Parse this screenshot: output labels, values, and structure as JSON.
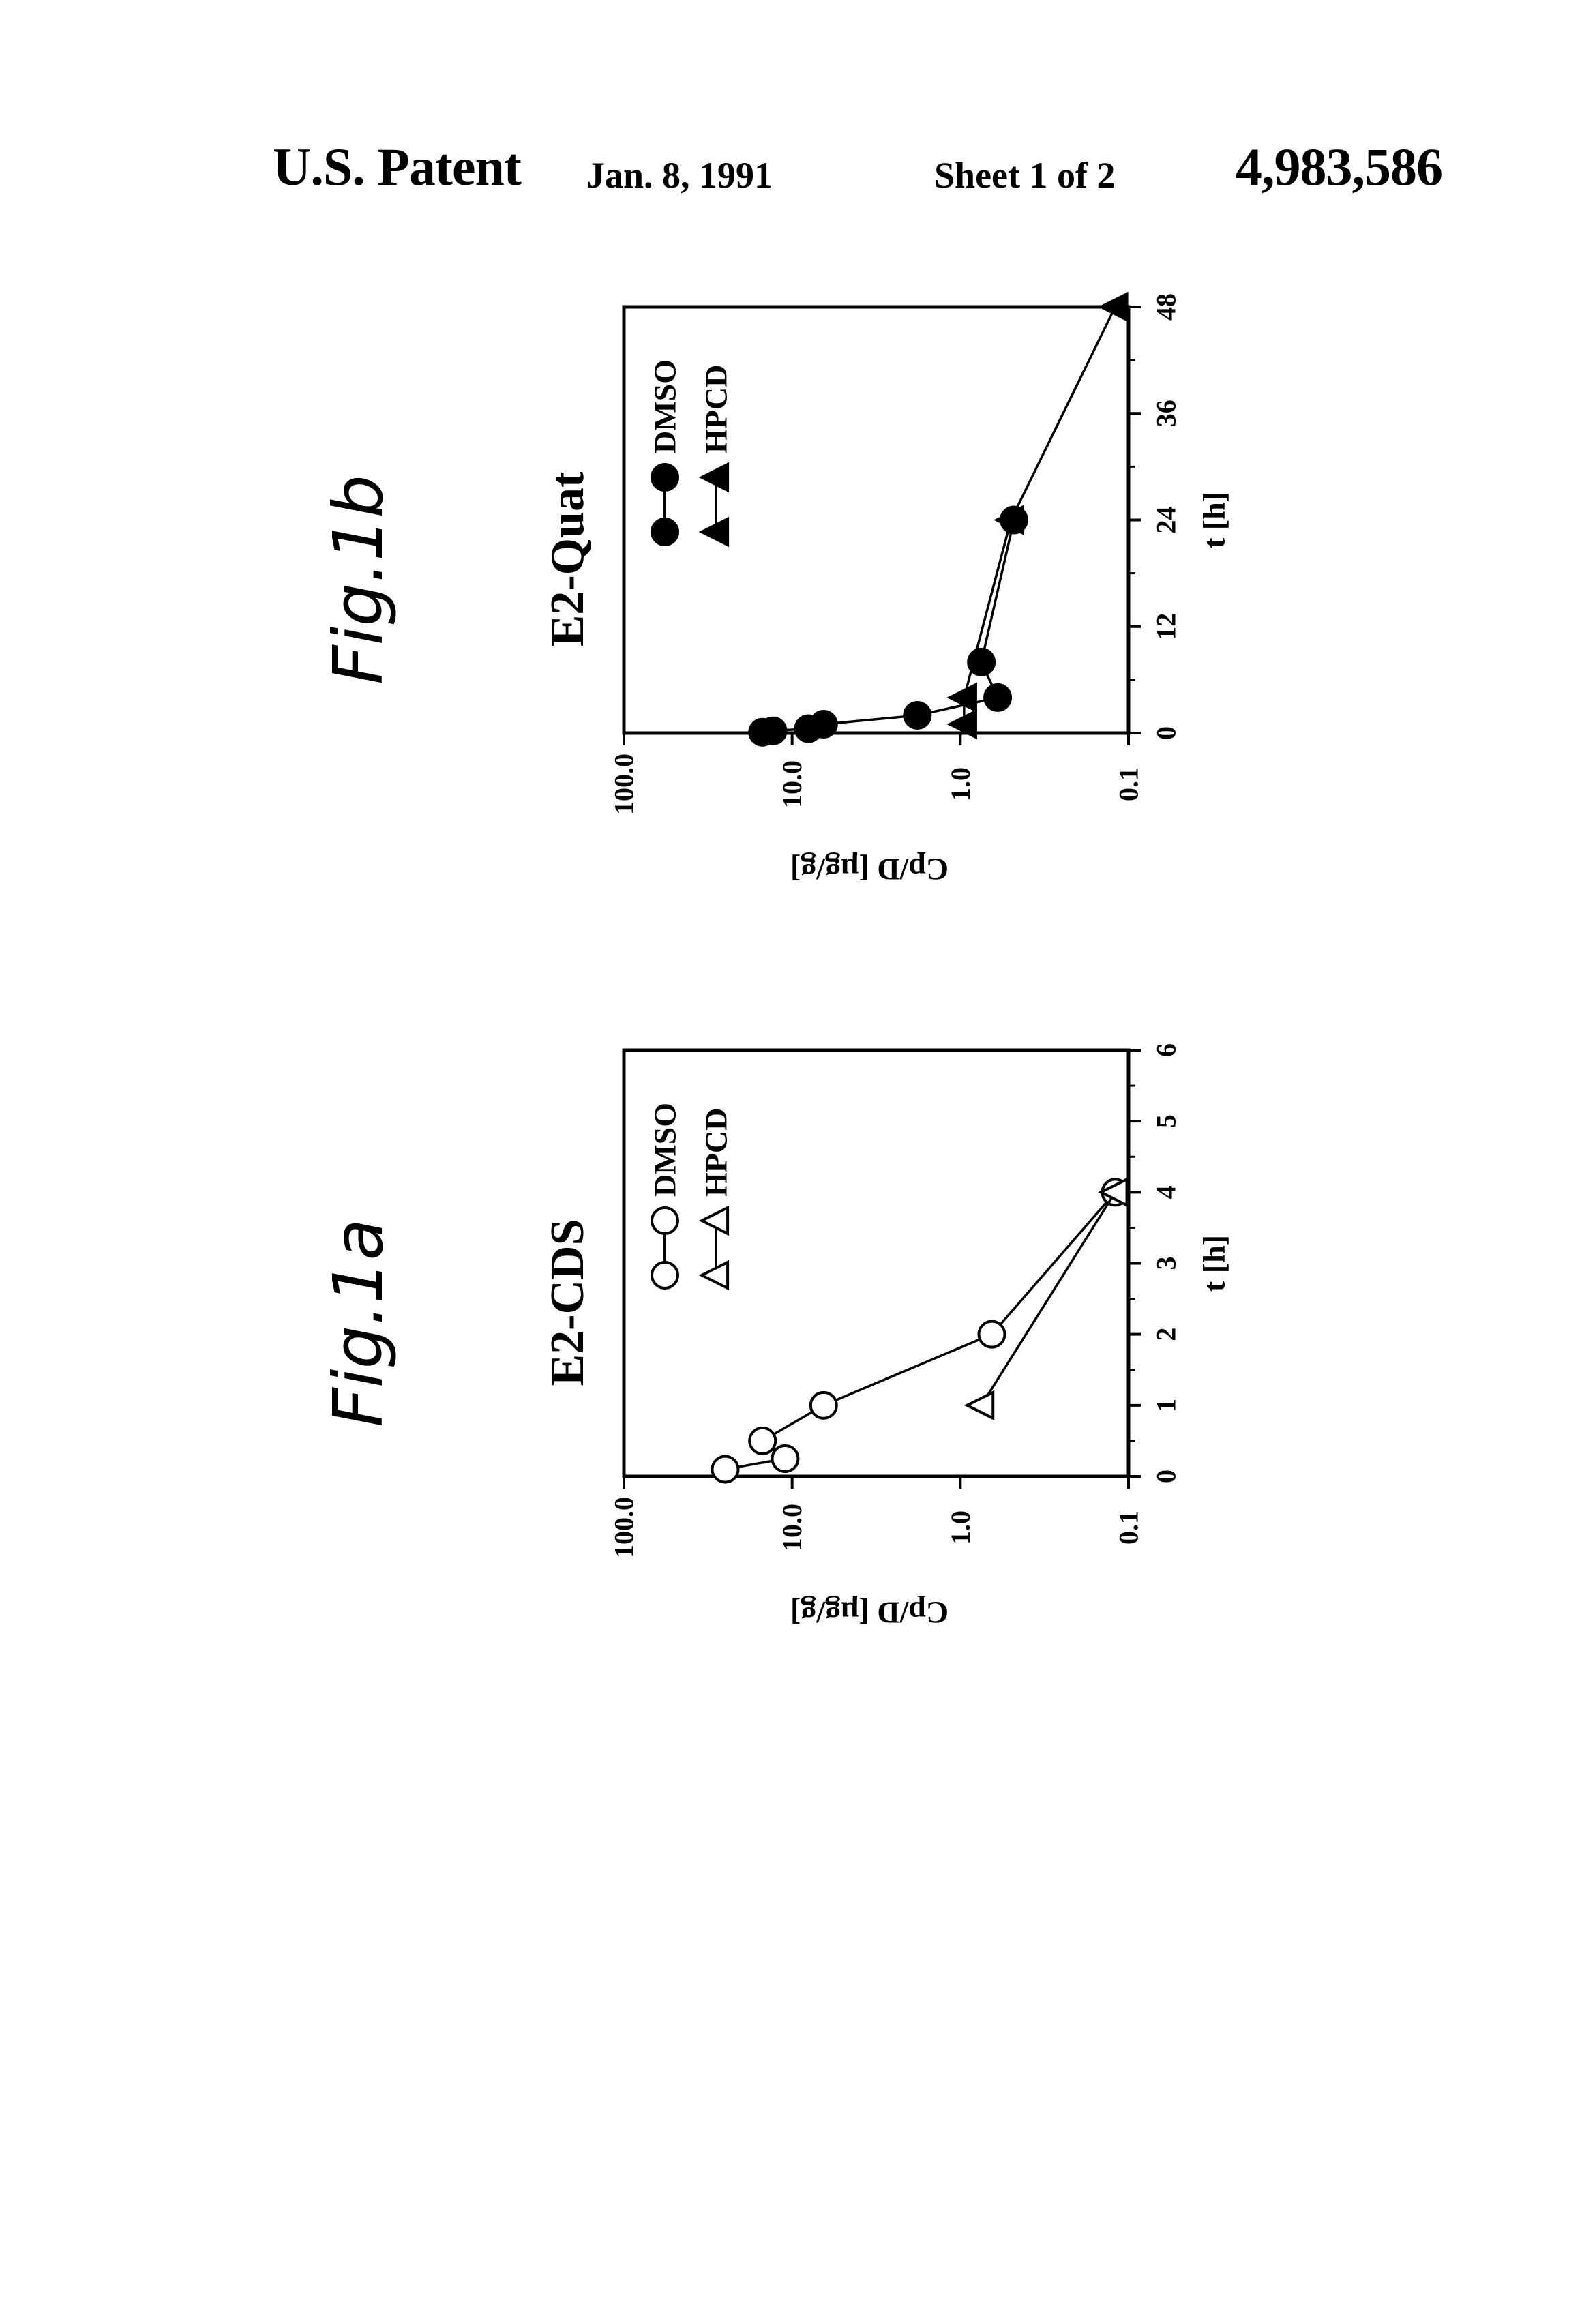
{
  "header": {
    "title": "U.S. Patent",
    "date": "Jan. 8, 1991",
    "sheet": "Sheet 1 of 2",
    "patent_number": "4,983,586"
  },
  "colors": {
    "ink": "#000000",
    "paper": "#ffffff"
  },
  "chart_data": [
    {
      "id": "fig1a",
      "figure_label": "Fig.1a",
      "type": "scatter",
      "title": "E2-CDS",
      "xlabel": "t [h]",
      "ylabel": "Cp/D [µg/g]",
      "xlim": [
        0,
        6
      ],
      "ylim": [
        0.1,
        100
      ],
      "yscale": "log",
      "x_ticks": [
        "0",
        "1",
        "2",
        "3",
        "4",
        "5",
        "6"
      ],
      "y_ticks": [
        "100.0",
        "10.0",
        "1.0",
        "0.1"
      ],
      "grid": false,
      "legend_position": "top-right",
      "series": [
        {
          "name": "DMSO",
          "marker": "open-circle",
          "line_style": "O—O",
          "x": [
            0.1,
            0.5,
            0.25,
            1,
            2,
            4
          ],
          "y": [
            25,
            15,
            11,
            6.5,
            0.65,
            0.12
          ]
        },
        {
          "name": "HPCD",
          "marker": "open-triangle",
          "line_style": "Δ—Δ",
          "x": [
            1,
            4
          ],
          "y": [
            0.75,
            0.12
          ]
        }
      ]
    },
    {
      "id": "fig1b",
      "figure_label": "Fig.1b",
      "type": "scatter",
      "title": "E2-Quat",
      "xlabel": "t [h]",
      "ylabel": "Cp/D [µg/g]",
      "xlim": [
        0,
        48
      ],
      "ylim": [
        0.1,
        100
      ],
      "yscale": "log",
      "x_ticks": [
        "0",
        "12",
        "24",
        "36",
        "48"
      ],
      "y_ticks": [
        "100.0",
        "10.0",
        "1.0",
        "0.1"
      ],
      "grid": false,
      "legend_position": "top-right",
      "series": [
        {
          "name": "DMSO",
          "marker": "filled-circle",
          "line_style": "●—●",
          "x": [
            0.1,
            0.25,
            0.5,
            1,
            2,
            4,
            8,
            24
          ],
          "y": [
            15,
            13,
            8,
            6.5,
            1.8,
            0.6,
            0.75,
            0.48
          ]
        },
        {
          "name": "HPCD",
          "marker": "filled-triangle",
          "line_style": "▲—▲",
          "x": [
            1,
            4,
            24,
            48
          ],
          "y": [
            0.95,
            0.95,
            0.5,
            0.12
          ]
        }
      ]
    }
  ]
}
